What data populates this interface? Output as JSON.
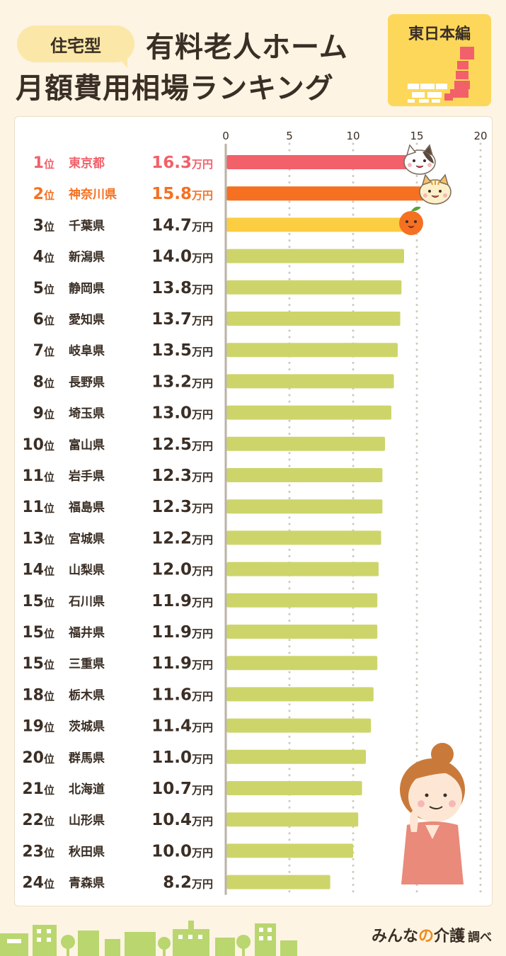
{
  "header": {
    "badge": "住宅型",
    "title_line1": "有料老人ホーム",
    "title_line2": "月額費用相場ランキング",
    "region_label": "東日本編"
  },
  "footer": {
    "brand_part1": "みんな",
    "brand_part2": "の",
    "brand_part3": "介護",
    "suffix": "調べ"
  },
  "colors": {
    "rank1": "#f2606a",
    "rank2": "#f57021",
    "rank3": "#fbcd40",
    "other": "#cdd56a",
    "background": "#fdf4e3"
  },
  "chart_data": {
    "type": "bar",
    "orientation": "horizontal",
    "unit": "万円",
    "xlim": [
      0,
      20
    ],
    "xticks": [
      0,
      5,
      10,
      15,
      20
    ],
    "grid": true,
    "items": [
      {
        "rank": "1位",
        "name": "東京都",
        "value": 16.3,
        "label": "16.3"
      },
      {
        "rank": "2位",
        "name": "神奈川県",
        "value": 15.8,
        "label": "15.8"
      },
      {
        "rank": "3位",
        "name": "千葉県",
        "value": 14.7,
        "label": "14.7"
      },
      {
        "rank": "4位",
        "name": "新潟県",
        "value": 14.0,
        "label": "14.0"
      },
      {
        "rank": "5位",
        "name": "静岡県",
        "value": 13.8,
        "label": "13.8"
      },
      {
        "rank": "6位",
        "name": "愛知県",
        "value": 13.7,
        "label": "13.7"
      },
      {
        "rank": "7位",
        "name": "岐阜県",
        "value": 13.5,
        "label": "13.5"
      },
      {
        "rank": "8位",
        "name": "長野県",
        "value": 13.2,
        "label": "13.2"
      },
      {
        "rank": "9位",
        "name": "埼玉県",
        "value": 13.0,
        "label": "13.0"
      },
      {
        "rank": "10位",
        "name": "富山県",
        "value": 12.5,
        "label": "12.5"
      },
      {
        "rank": "11位",
        "name": "岩手県",
        "value": 12.3,
        "label": "12.3"
      },
      {
        "rank": "11位",
        "name": "福島県",
        "value": 12.3,
        "label": "12.3"
      },
      {
        "rank": "13位",
        "name": "宮城県",
        "value": 12.2,
        "label": "12.2"
      },
      {
        "rank": "14位",
        "name": "山梨県",
        "value": 12.0,
        "label": "12.0"
      },
      {
        "rank": "15位",
        "name": "石川県",
        "value": 11.9,
        "label": "11.9"
      },
      {
        "rank": "15位",
        "name": "福井県",
        "value": 11.9,
        "label": "11.9"
      },
      {
        "rank": "15位",
        "name": "三重県",
        "value": 11.9,
        "label": "11.9"
      },
      {
        "rank": "18位",
        "name": "栃木県",
        "value": 11.6,
        "label": "11.6"
      },
      {
        "rank": "19位",
        "name": "茨城県",
        "value": 11.4,
        "label": "11.4"
      },
      {
        "rank": "20位",
        "name": "群馬県",
        "value": 11.0,
        "label": "11.0"
      },
      {
        "rank": "21位",
        "name": "北海道",
        "value": 10.7,
        "label": "10.7"
      },
      {
        "rank": "22位",
        "name": "山形県",
        "value": 10.4,
        "label": "10.4"
      },
      {
        "rank": "23位",
        "name": "秋田県",
        "value": 10.0,
        "label": "10.0"
      },
      {
        "rank": "24位",
        "name": "青森県",
        "value": 8.2,
        "label": "8.2"
      }
    ]
  }
}
